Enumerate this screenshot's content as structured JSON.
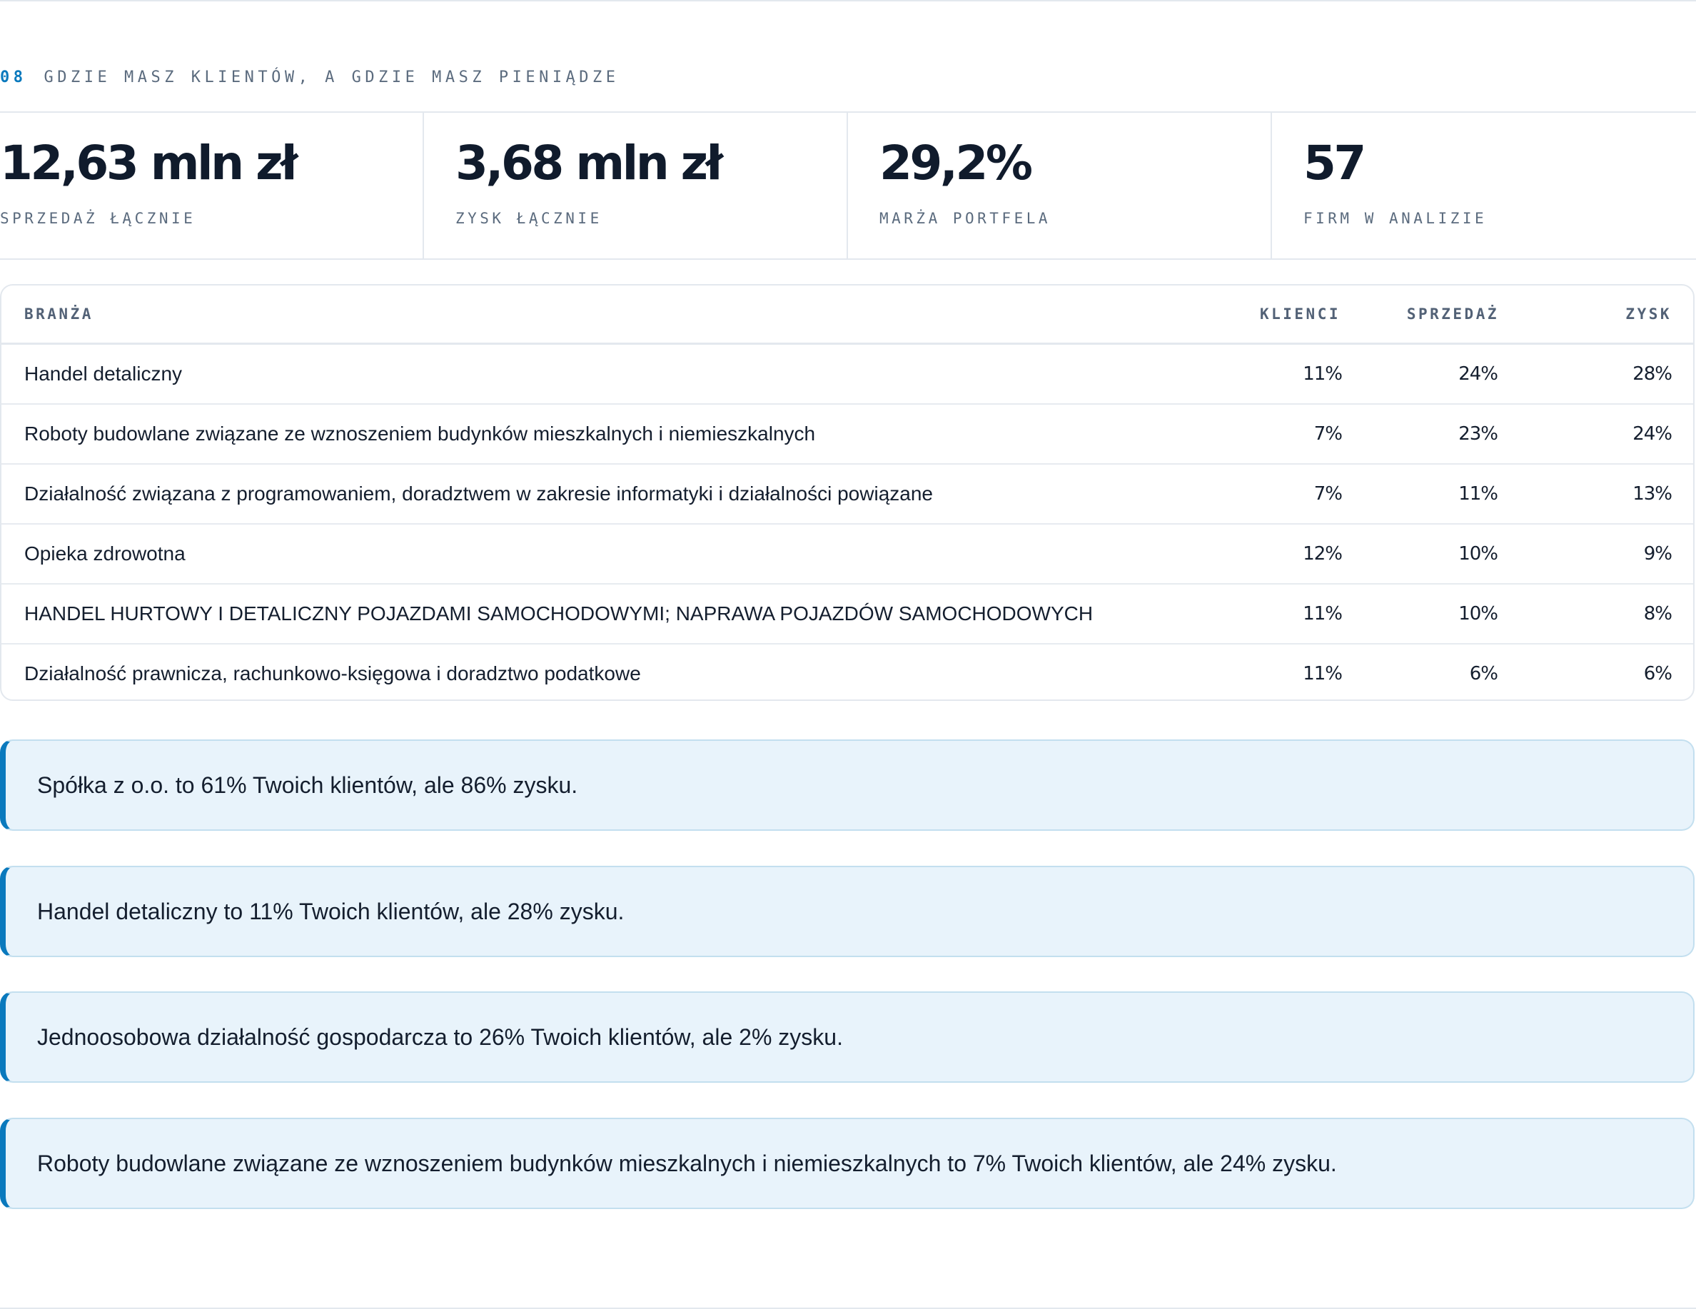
{
  "section": {
    "number": "08",
    "title": "GDZIE MASZ KLIENTÓW, A GDZIE MASZ PIENIĄDZE"
  },
  "stats": [
    {
      "value": "12,63 mln zł",
      "label": "SPRZEDAŻ ŁĄCZNIE"
    },
    {
      "value": "3,68 mln zł",
      "label": "ZYSK ŁĄCZNIE"
    },
    {
      "value": "29,2%",
      "label": "MARŻA PORTFELA"
    },
    {
      "value": "57",
      "label": "FIRM W ANALIZIE"
    }
  ],
  "table": {
    "headers": {
      "industry": "BRANŻA",
      "clients": "KLIENCI",
      "sales": "SPRZEDAŻ",
      "profit": "ZYSK"
    },
    "rows": [
      {
        "industry": "Handel detaliczny",
        "clients": "11%",
        "sales": "24%",
        "profit": "28%"
      },
      {
        "industry": "Roboty budowlane związane ze wznoszeniem budynków mieszkalnych i niemieszkalnych",
        "clients": "7%",
        "sales": "23%",
        "profit": "24%"
      },
      {
        "industry": "Działalność związana z programowaniem, doradztwem w zakresie informatyki i działalności powiązane",
        "clients": "7%",
        "sales": "11%",
        "profit": "13%"
      },
      {
        "industry": "Opieka zdrowotna",
        "clients": "12%",
        "sales": "10%",
        "profit": "9%"
      },
      {
        "industry": "HANDEL HURTOWY I DETALICZNY POJAZDAMI SAMOCHODOWYMI; NAPRAWA POJAZDÓW SAMOCHODOWYCH",
        "clients": "11%",
        "sales": "10%",
        "profit": "8%"
      },
      {
        "industry": "Działalność prawnicza, rachunkowo-księgowa i doradztwo podatkowe",
        "clients": "11%",
        "sales": "6%",
        "profit": "6%"
      }
    ]
  },
  "insights": [
    "Spółka z o.o. to 61% Twoich klientów, ale 86% zysku.",
    "Handel detaliczny to 11% Twoich klientów, ale 28% zysku.",
    "Jednoosobowa działalność gospodarcza to 26% Twoich klientów, ale 2% zysku.",
    "Roboty budowlane związane ze wznoszeniem budynków mieszkalnych i niemieszkalnych to 7% Twoich klientów, ale 24% zysku."
  ],
  "colors": {
    "accent": "#0a79bd",
    "insight_bg": "#e8f3fb",
    "text": "#101b2c",
    "muted": "#5b6b7e",
    "border": "#e3e8ee"
  }
}
